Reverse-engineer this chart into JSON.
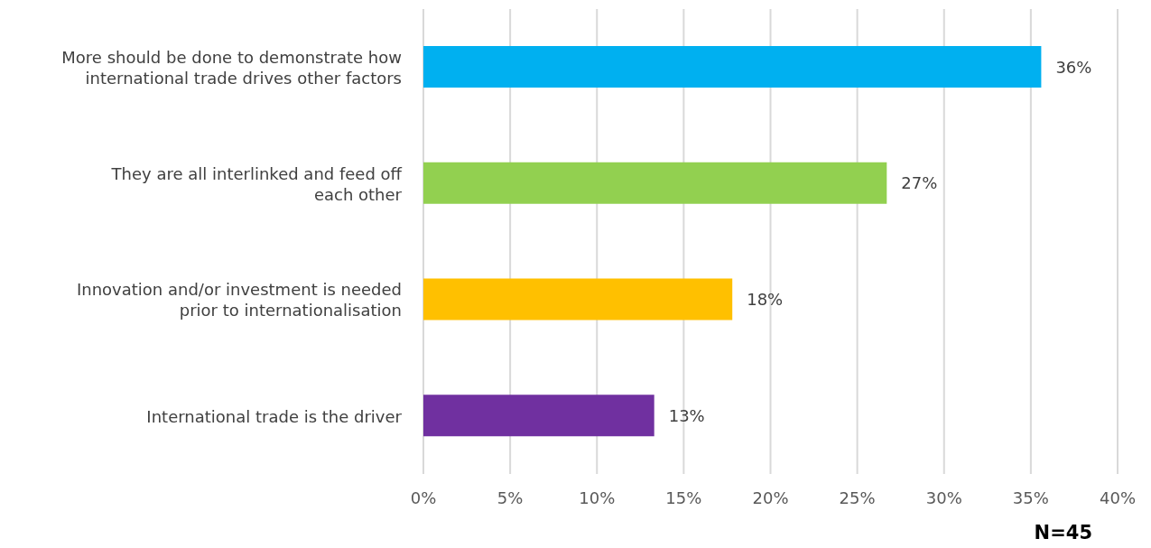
{
  "chart_data": {
    "type": "bar",
    "orientation": "horizontal",
    "categories": [
      "More should be done to demonstrate how international trade drives other factors",
      "They are all interlinked and feed off each other",
      "Innovation and/or investment is needed prior to internationalisation",
      "International trade is the driver"
    ],
    "values": [
      35.6,
      26.7,
      17.8,
      13.3
    ],
    "colors": [
      "#00b0f0",
      "#92d050",
      "#ffc000",
      "#7030a0"
    ],
    "value_labels": [
      "36%",
      "27%",
      "18%",
      "13%"
    ],
    "xlim": [
      0,
      40
    ],
    "xticks": [
      {
        "value": 0,
        "label": "0%"
      },
      {
        "value": 5,
        "label": "5%"
      },
      {
        "value": 10,
        "label": "10%"
      },
      {
        "value": 15,
        "label": "15%"
      },
      {
        "value": 20,
        "label": "20%"
      },
      {
        "value": 25,
        "label": "25%"
      },
      {
        "value": 30,
        "label": "30%"
      },
      {
        "value": 35,
        "label": "35%"
      },
      {
        "value": 40,
        "label": "40%"
      }
    ],
    "grid": "x",
    "annotations": [
      "N=45"
    ]
  }
}
